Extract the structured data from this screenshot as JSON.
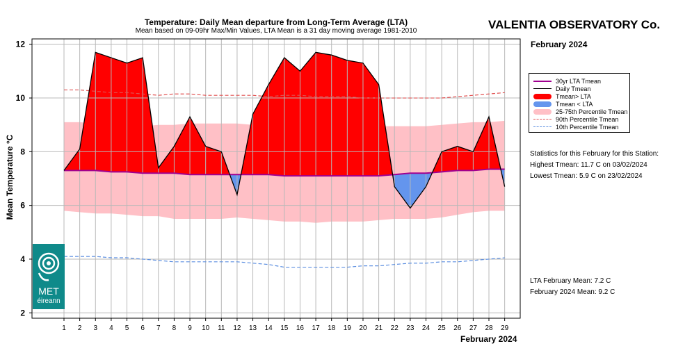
{
  "chart_data": {
    "type": "area",
    "title": "Temperature: Daily Mean departure from Long-Term Average (LTA)",
    "subtitle": "Mean based on 09-09hr Max/Min Values, LTA Mean is a 31 day moving average 1981-2010",
    "station": "VALENTIA OBSERVATORY Co.",
    "period": "February 2024",
    "xlabel": "February 2024",
    "ylabel": "Mean Temperature °C",
    "x": [
      1,
      2,
      3,
      4,
      5,
      6,
      7,
      8,
      9,
      10,
      11,
      12,
      13,
      14,
      15,
      16,
      17,
      18,
      19,
      20,
      21,
      22,
      23,
      24,
      25,
      26,
      27,
      28,
      29
    ],
    "xlim": [
      0,
      30
    ],
    "ylim": [
      1.8,
      12.2
    ],
    "y_ticks": [
      2,
      4,
      6,
      8,
      10,
      12
    ],
    "grid": true,
    "series": [
      {
        "name": "Daily Tmean",
        "values": [
          7.3,
          8.1,
          11.7,
          11.5,
          11.3,
          11.5,
          7.4,
          8.2,
          9.3,
          8.2,
          8.0,
          6.4,
          9.4,
          10.5,
          11.5,
          11.0,
          11.7,
          11.6,
          11.4,
          11.3,
          10.5,
          6.7,
          5.9,
          6.7,
          8.0,
          8.2,
          8.0,
          9.3,
          6.7
        ]
      },
      {
        "name": "30yr LTA Tmean",
        "values": [
          7.3,
          7.3,
          7.3,
          7.25,
          7.25,
          7.2,
          7.2,
          7.2,
          7.15,
          7.15,
          7.15,
          7.15,
          7.15,
          7.15,
          7.1,
          7.1,
          7.1,
          7.1,
          7.1,
          7.1,
          7.1,
          7.15,
          7.2,
          7.2,
          7.25,
          7.3,
          7.3,
          7.35,
          7.35
        ]
      },
      {
        "name": "90th Percentile Tmean",
        "values": [
          10.3,
          10.3,
          10.25,
          10.2,
          10.2,
          10.15,
          10.1,
          10.15,
          10.15,
          10.1,
          10.1,
          10.1,
          10.1,
          10.05,
          10.1,
          10.1,
          10.05,
          10.05,
          10.05,
          10.0,
          10.0,
          10.0,
          10.0,
          10.0,
          10.0,
          10.05,
          10.1,
          10.15,
          10.2
        ]
      },
      {
        "name": "10th Percentile Tmean",
        "values": [
          4.1,
          4.1,
          4.1,
          4.05,
          4.05,
          4.0,
          3.95,
          3.9,
          3.9,
          3.9,
          3.9,
          3.9,
          3.85,
          3.8,
          3.7,
          3.7,
          3.7,
          3.7,
          3.7,
          3.75,
          3.75,
          3.8,
          3.85,
          3.85,
          3.9,
          3.9,
          3.95,
          4.0,
          4.05
        ]
      },
      {
        "name": "75th Percentile Tmean",
        "values": [
          9.1,
          9.1,
          9.05,
          9.05,
          9.0,
          8.95,
          9.0,
          9.0,
          9.05,
          9.05,
          9.05,
          9.05,
          9.0,
          8.95,
          8.95,
          8.9,
          8.9,
          8.9,
          8.9,
          8.95,
          8.95,
          8.95,
          8.95,
          8.95,
          9.0,
          9.05,
          9.1,
          9.1,
          9.15
        ]
      },
      {
        "name": "25th Percentile Tmean",
        "values": [
          5.8,
          5.75,
          5.7,
          5.7,
          5.65,
          5.6,
          5.6,
          5.5,
          5.5,
          5.5,
          5.5,
          5.55,
          5.5,
          5.45,
          5.4,
          5.4,
          5.35,
          5.4,
          5.4,
          5.4,
          5.45,
          5.5,
          5.5,
          5.5,
          5.55,
          5.65,
          5.75,
          5.8,
          5.8
        ]
      }
    ],
    "legend": {
      "position": "right",
      "entries": [
        "30yr LTA Tmean",
        "Daily Tmean",
        "Tmean> LTA",
        "Tmean < LTA",
        "25-75th Percentile Tmean",
        "90th Percentile Tmean",
        "10th Percentile Tmean"
      ]
    },
    "colors": {
      "above_lta": "#ff0000",
      "below_lta": "#6495ed",
      "percentile_band": "#ffc0c6",
      "lta_line": "#a00090",
      "p90_line": "#e05050",
      "p10_line": "#5b8ee0",
      "daily_line": "#000000"
    }
  },
  "stats": {
    "heading": "Statistics for this February for this Station:",
    "highest": "Highest Tmean: 11.7 C on 03/02/2024",
    "lowest": "Lowest Tmean: 5.9 C on 23/02/2024",
    "lta_mean": "LTA February Mean: 7.2 C",
    "month_mean": "February 2024 Mean: 9.2 C"
  },
  "logo": {
    "text_top": "MET",
    "text_bottom": "éireann",
    "color": "#0f8a8a"
  }
}
